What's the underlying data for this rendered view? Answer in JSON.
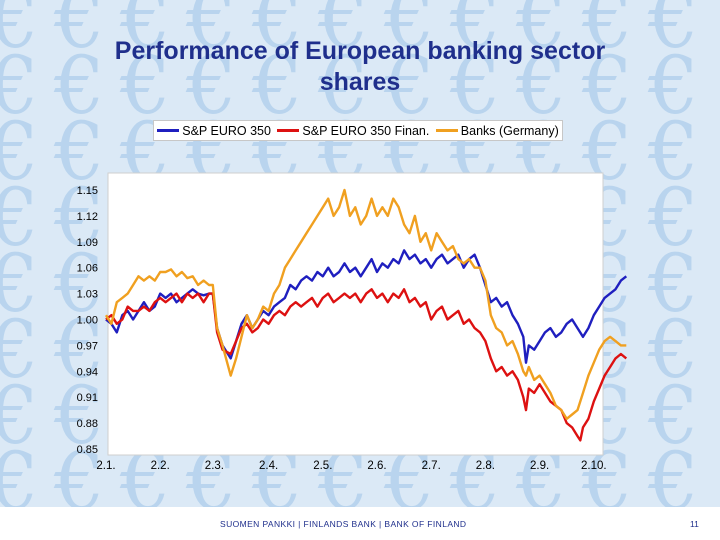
{
  "slide": {
    "title_line1": "Performance of European banking sector",
    "title_line2": "shares",
    "footer": "SUOMEN PANKKI | FINLANDS BANK | BANK OF FINLAND",
    "page_number": "11",
    "background_glyph": "€",
    "background_glyph_color": "#b9d4ee",
    "title_color": "#1f2f8c"
  },
  "chart_data": {
    "type": "line",
    "title": "",
    "xlabel": "",
    "ylabel": "",
    "x_tick_labels": [
      "2.1.",
      "2.2.",
      "2.3.",
      "2.4.",
      "2.5.",
      "2.6.",
      "2.7.",
      "2.8.",
      "2.9.",
      "2.10."
    ],
    "y_ticks": [
      "1.15",
      "1.12",
      "1.09",
      "1.06",
      "1.03",
      "1.00",
      "0.97",
      "0.94",
      "0.91",
      "0.88",
      "0.85"
    ],
    "ylim": [
      0.85,
      1.15
    ],
    "grid": false,
    "legend_position": "top",
    "series": [
      {
        "name": "S&P EURO 350",
        "color": "#1f1fbf",
        "points": [
          [
            0.0,
            1.0
          ],
          [
            0.1,
            0.995
          ],
          [
            0.2,
            0.985
          ],
          [
            0.3,
            1.005
          ],
          [
            0.4,
            1.01
          ],
          [
            0.5,
            1.0
          ],
          [
            0.6,
            1.01
          ],
          [
            0.7,
            1.02
          ],
          [
            0.8,
            1.01
          ],
          [
            0.9,
            1.015
          ],
          [
            1.0,
            1.03
          ],
          [
            1.1,
            1.025
          ],
          [
            1.2,
            1.03
          ],
          [
            1.3,
            1.02
          ],
          [
            1.4,
            1.025
          ],
          [
            1.5,
            1.03
          ],
          [
            1.6,
            1.035
          ],
          [
            1.7,
            1.03
          ],
          [
            1.8,
            1.028
          ],
          [
            1.9,
            1.03
          ],
          [
            1.97,
            1.03
          ],
          [
            2.05,
            0.99
          ],
          [
            2.15,
            0.97
          ],
          [
            2.3,
            0.955
          ],
          [
            2.4,
            0.975
          ],
          [
            2.5,
            0.995
          ],
          [
            2.6,
            1.005
          ],
          [
            2.7,
            0.99
          ],
          [
            2.8,
            1.0
          ],
          [
            2.9,
            1.01
          ],
          [
            3.0,
            1.005
          ],
          [
            3.1,
            1.015
          ],
          [
            3.2,
            1.02
          ],
          [
            3.3,
            1.025
          ],
          [
            3.4,
            1.04
          ],
          [
            3.5,
            1.035
          ],
          [
            3.6,
            1.045
          ],
          [
            3.7,
            1.05
          ],
          [
            3.8,
            1.045
          ],
          [
            3.9,
            1.055
          ],
          [
            4.0,
            1.05
          ],
          [
            4.1,
            1.06
          ],
          [
            4.2,
            1.05
          ],
          [
            4.3,
            1.055
          ],
          [
            4.4,
            1.065
          ],
          [
            4.5,
            1.055
          ],
          [
            4.6,
            1.06
          ],
          [
            4.7,
            1.05
          ],
          [
            4.8,
            1.06
          ],
          [
            4.9,
            1.07
          ],
          [
            5.0,
            1.055
          ],
          [
            5.1,
            1.065
          ],
          [
            5.2,
            1.06
          ],
          [
            5.3,
            1.07
          ],
          [
            5.4,
            1.065
          ],
          [
            5.5,
            1.08
          ],
          [
            5.6,
            1.07
          ],
          [
            5.7,
            1.075
          ],
          [
            5.8,
            1.065
          ],
          [
            5.9,
            1.07
          ],
          [
            6.0,
            1.06
          ],
          [
            6.1,
            1.07
          ],
          [
            6.2,
            1.075
          ],
          [
            6.3,
            1.065
          ],
          [
            6.4,
            1.07
          ],
          [
            6.5,
            1.075
          ],
          [
            6.6,
            1.06
          ],
          [
            6.7,
            1.07
          ],
          [
            6.8,
            1.075
          ],
          [
            6.9,
            1.06
          ],
          [
            7.0,
            1.04
          ],
          [
            7.1,
            1.02
          ],
          [
            7.2,
            1.025
          ],
          [
            7.3,
            1.015
          ],
          [
            7.4,
            1.02
          ],
          [
            7.5,
            1.005
          ],
          [
            7.6,
            0.995
          ],
          [
            7.7,
            0.98
          ],
          [
            7.75,
            0.95
          ],
          [
            7.8,
            0.97
          ],
          [
            7.9,
            0.965
          ],
          [
            8.0,
            0.975
          ],
          [
            8.1,
            0.985
          ],
          [
            8.2,
            0.99
          ],
          [
            8.3,
            0.98
          ],
          [
            8.4,
            0.985
          ],
          [
            8.5,
            0.995
          ],
          [
            8.6,
            1.0
          ],
          [
            8.7,
            0.99
          ],
          [
            8.8,
            0.98
          ],
          [
            8.9,
            0.99
          ],
          [
            9.0,
            1.005
          ],
          [
            9.1,
            1.015
          ],
          [
            9.2,
            1.025
          ],
          [
            9.3,
            1.03
          ],
          [
            9.4,
            1.035
          ],
          [
            9.5,
            1.045
          ],
          [
            9.6,
            1.05
          ]
        ]
      },
      {
        "name": "S&P EURO 350 Finan.",
        "color": "#dd1111",
        "points": [
          [
            0.0,
            1.0
          ],
          [
            0.1,
            1.005
          ],
          [
            0.2,
            0.995
          ],
          [
            0.3,
            1.0
          ],
          [
            0.4,
            1.015
          ],
          [
            0.5,
            1.01
          ],
          [
            0.6,
            1.01
          ],
          [
            0.7,
            1.015
          ],
          [
            0.8,
            1.01
          ],
          [
            0.9,
            1.02
          ],
          [
            1.0,
            1.025
          ],
          [
            1.1,
            1.02
          ],
          [
            1.2,
            1.025
          ],
          [
            1.3,
            1.03
          ],
          [
            1.4,
            1.02
          ],
          [
            1.5,
            1.03
          ],
          [
            1.6,
            1.025
          ],
          [
            1.7,
            1.03
          ],
          [
            1.8,
            1.02
          ],
          [
            1.9,
            1.03
          ],
          [
            1.97,
            1.03
          ],
          [
            2.05,
            0.985
          ],
          [
            2.15,
            0.965
          ],
          [
            2.3,
            0.96
          ],
          [
            2.4,
            0.975
          ],
          [
            2.5,
            0.99
          ],
          [
            2.6,
            0.995
          ],
          [
            2.7,
            0.985
          ],
          [
            2.8,
            0.99
          ],
          [
            2.9,
            1.0
          ],
          [
            3.0,
            0.995
          ],
          [
            3.1,
            1.005
          ],
          [
            3.2,
            1.01
          ],
          [
            3.3,
            1.005
          ],
          [
            3.4,
            1.015
          ],
          [
            3.5,
            1.02
          ],
          [
            3.6,
            1.015
          ],
          [
            3.7,
            1.02
          ],
          [
            3.8,
            1.025
          ],
          [
            3.9,
            1.015
          ],
          [
            4.0,
            1.025
          ],
          [
            4.1,
            1.03
          ],
          [
            4.2,
            1.02
          ],
          [
            4.3,
            1.025
          ],
          [
            4.4,
            1.03
          ],
          [
            4.5,
            1.025
          ],
          [
            4.6,
            1.03
          ],
          [
            4.7,
            1.02
          ],
          [
            4.8,
            1.03
          ],
          [
            4.9,
            1.035
          ],
          [
            5.0,
            1.025
          ],
          [
            5.1,
            1.03
          ],
          [
            5.2,
            1.02
          ],
          [
            5.3,
            1.03
          ],
          [
            5.4,
            1.025
          ],
          [
            5.5,
            1.035
          ],
          [
            5.6,
            1.02
          ],
          [
            5.7,
            1.025
          ],
          [
            5.8,
            1.015
          ],
          [
            5.9,
            1.02
          ],
          [
            6.0,
            1.0
          ],
          [
            6.1,
            1.01
          ],
          [
            6.2,
            1.015
          ],
          [
            6.3,
            1.0
          ],
          [
            6.4,
            1.005
          ],
          [
            6.5,
            1.01
          ],
          [
            6.6,
            0.995
          ],
          [
            6.7,
            1.0
          ],
          [
            6.8,
            0.99
          ],
          [
            6.9,
            0.985
          ],
          [
            7.0,
            0.975
          ],
          [
            7.1,
            0.955
          ],
          [
            7.2,
            0.94
          ],
          [
            7.3,
            0.945
          ],
          [
            7.4,
            0.935
          ],
          [
            7.5,
            0.94
          ],
          [
            7.6,
            0.93
          ],
          [
            7.7,
            0.91
          ],
          [
            7.75,
            0.895
          ],
          [
            7.8,
            0.92
          ],
          [
            7.9,
            0.915
          ],
          [
            8.0,
            0.925
          ],
          [
            8.1,
            0.915
          ],
          [
            8.2,
            0.905
          ],
          [
            8.3,
            0.9
          ],
          [
            8.4,
            0.895
          ],
          [
            8.5,
            0.88
          ],
          [
            8.6,
            0.875
          ],
          [
            8.7,
            0.865
          ],
          [
            8.75,
            0.86
          ],
          [
            8.8,
            0.875
          ],
          [
            8.9,
            0.885
          ],
          [
            9.0,
            0.905
          ],
          [
            9.1,
            0.92
          ],
          [
            9.2,
            0.935
          ],
          [
            9.3,
            0.945
          ],
          [
            9.4,
            0.955
          ],
          [
            9.5,
            0.96
          ],
          [
            9.6,
            0.955
          ]
        ]
      },
      {
        "name": "Banks (Germany)",
        "color": "#f0a020",
        "points": [
          [
            0.0,
            1.005
          ],
          [
            0.1,
            0.995
          ],
          [
            0.2,
            1.02
          ],
          [
            0.3,
            1.025
          ],
          [
            0.4,
            1.03
          ],
          [
            0.5,
            1.04
          ],
          [
            0.6,
            1.05
          ],
          [
            0.7,
            1.045
          ],
          [
            0.8,
            1.05
          ],
          [
            0.9,
            1.045
          ],
          [
            1.0,
            1.055
          ],
          [
            1.1,
            1.055
          ],
          [
            1.2,
            1.058
          ],
          [
            1.3,
            1.05
          ],
          [
            1.4,
            1.055
          ],
          [
            1.5,
            1.048
          ],
          [
            1.6,
            1.05
          ],
          [
            1.7,
            1.04
          ],
          [
            1.8,
            1.045
          ],
          [
            1.9,
            1.04
          ],
          [
            1.97,
            1.04
          ],
          [
            2.05,
            0.99
          ],
          [
            2.15,
            0.97
          ],
          [
            2.3,
            0.935
          ],
          [
            2.4,
            0.955
          ],
          [
            2.5,
            0.98
          ],
          [
            2.6,
            1.005
          ],
          [
            2.7,
            0.99
          ],
          [
            2.8,
            1.0
          ],
          [
            2.9,
            1.015
          ],
          [
            3.0,
            1.01
          ],
          [
            3.1,
            1.03
          ],
          [
            3.2,
            1.04
          ],
          [
            3.3,
            1.06
          ],
          [
            3.4,
            1.07
          ],
          [
            3.5,
            1.08
          ],
          [
            3.6,
            1.09
          ],
          [
            3.7,
            1.1
          ],
          [
            3.8,
            1.11
          ],
          [
            3.9,
            1.12
          ],
          [
            4.0,
            1.13
          ],
          [
            4.1,
            1.14
          ],
          [
            4.2,
            1.12
          ],
          [
            4.3,
            1.13
          ],
          [
            4.4,
            1.15
          ],
          [
            4.5,
            1.12
          ],
          [
            4.6,
            1.13
          ],
          [
            4.7,
            1.11
          ],
          [
            4.8,
            1.12
          ],
          [
            4.9,
            1.14
          ],
          [
            5.0,
            1.12
          ],
          [
            5.1,
            1.13
          ],
          [
            5.2,
            1.12
          ],
          [
            5.3,
            1.14
          ],
          [
            5.4,
            1.13
          ],
          [
            5.5,
            1.11
          ],
          [
            5.6,
            1.1
          ],
          [
            5.7,
            1.12
          ],
          [
            5.8,
            1.09
          ],
          [
            5.9,
            1.1
          ],
          [
            6.0,
            1.08
          ],
          [
            6.1,
            1.1
          ],
          [
            6.2,
            1.09
          ],
          [
            6.3,
            1.08
          ],
          [
            6.4,
            1.085
          ],
          [
            6.5,
            1.07
          ],
          [
            6.6,
            1.065
          ],
          [
            6.7,
            1.07
          ],
          [
            6.8,
            1.06
          ],
          [
            6.9,
            1.06
          ],
          [
            7.0,
            1.045
          ],
          [
            7.1,
            1.005
          ],
          [
            7.2,
            0.99
          ],
          [
            7.3,
            0.985
          ],
          [
            7.4,
            0.97
          ],
          [
            7.5,
            0.975
          ],
          [
            7.6,
            0.96
          ],
          [
            7.7,
            0.94
          ],
          [
            7.75,
            0.935
          ],
          [
            7.8,
            0.945
          ],
          [
            7.9,
            0.93
          ],
          [
            8.0,
            0.935
          ],
          [
            8.1,
            0.925
          ],
          [
            8.2,
            0.915
          ],
          [
            8.3,
            0.9
          ],
          [
            8.4,
            0.895
          ],
          [
            8.5,
            0.885
          ],
          [
            8.6,
            0.89
          ],
          [
            8.7,
            0.895
          ],
          [
            8.8,
            0.915
          ],
          [
            8.9,
            0.935
          ],
          [
            9.0,
            0.95
          ],
          [
            9.1,
            0.965
          ],
          [
            9.2,
            0.975
          ],
          [
            9.3,
            0.98
          ],
          [
            9.4,
            0.975
          ],
          [
            9.5,
            0.97
          ],
          [
            9.6,
            0.97
          ]
        ]
      }
    ]
  }
}
